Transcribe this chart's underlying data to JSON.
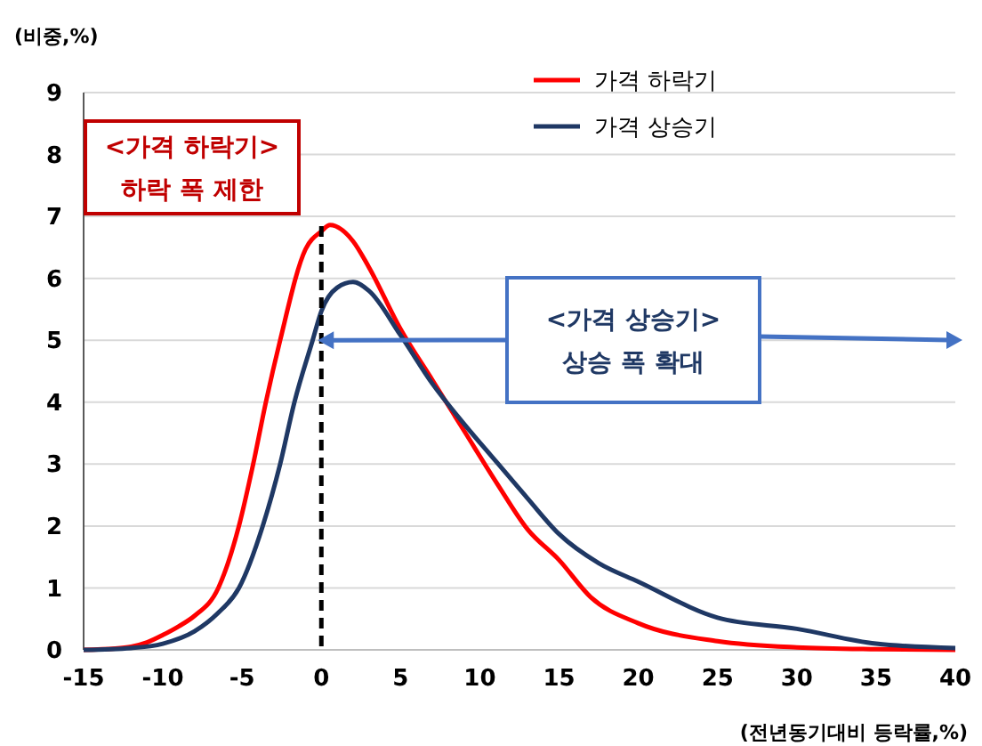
{
  "chart_data": {
    "type": "line",
    "ylabel": "(비중,%)",
    "xlabel": "(전년동기대비 등락률,%)",
    "xlim": [
      -15,
      40
    ],
    "xticks": [
      -15,
      -10,
      -5,
      0,
      5,
      10,
      15,
      20,
      25,
      30,
      35,
      40
    ],
    "ylim": [
      0,
      9
    ],
    "yticks": [
      0,
      1,
      2,
      3,
      4,
      5,
      6,
      7,
      8,
      9
    ],
    "grid": "y",
    "legend": "top right",
    "marker": "none",
    "line_style": "solid",
    "ref_lines": [
      {
        "axis": "x",
        "value": 0,
        "label": null,
        "color": "#000000",
        "line_style": "dashed"
      }
    ],
    "annotations": [
      "<가격 하락기>\n하락 폭 제한",
      "<가격 상승기>\n상승 폭 확대"
    ],
    "series": [
      {
        "name": "가격 하락기",
        "color": "#ff0000",
        "x": [
          -15,
          -13,
          -12,
          -11,
          -10,
          -9,
          -8,
          -6.5,
          -5.2,
          -4.3,
          -3.5,
          -2.6,
          -1,
          0,
          0.55,
          2,
          3,
          5,
          7,
          9,
          11.1,
          13,
          15,
          17,
          20,
          25,
          30,
          35,
          40
        ],
        "values": [
          0,
          0.02,
          0.05,
          0.12,
          0.24,
          0.38,
          0.55,
          1,
          2,
          3,
          4,
          5,
          6.47,
          6.76,
          6.86,
          6.6,
          6.18,
          5.18,
          4.36,
          3.54,
          2.68,
          1.95,
          1.45,
          0.85,
          0.43,
          0.14,
          0.04,
          0.01,
          0
        ]
      },
      {
        "name": "가격 상승기",
        "color": "#1f3864",
        "x": [
          -15,
          -12,
          -10,
          -8,
          -6.5,
          -5.2,
          -3.7,
          -2.6,
          -1.7,
          -0.55,
          0,
          1,
          2,
          3,
          5,
          7,
          9,
          11.1,
          13,
          15,
          17.5,
          20,
          25,
          30,
          35,
          40
        ],
        "values": [
          0,
          0.03,
          0.1,
          0.3,
          0.6,
          1,
          2,
          3,
          4,
          5,
          5.47,
          5.85,
          5.94,
          5.8,
          5.08,
          4.3,
          3.65,
          3.02,
          2.45,
          1.87,
          1.4,
          1.1,
          0.52,
          0.34,
          0.1,
          0.03
        ]
      }
    ]
  }
}
